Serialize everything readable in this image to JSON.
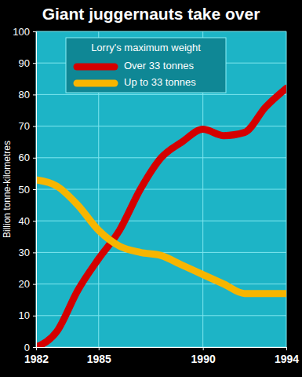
{
  "chart_data": {
    "type": "line",
    "title": "Giant juggernauts take over",
    "y_label": "Billion tonne-kilometres",
    "legend_title": "Lorry's maximum weight",
    "x": [
      1982,
      1983,
      1984,
      1985,
      1986,
      1987,
      1988,
      1989,
      1990,
      1991,
      1992,
      1993,
      1994
    ],
    "series": [
      {
        "name": "Over 33 tonnes",
        "color": "#d40000",
        "values": [
          0,
          5,
          18,
          28,
          37,
          50,
          60,
          65,
          69,
          67,
          68,
          76,
          82
        ]
      },
      {
        "name": "Up to 33 tonnes",
        "color": "#f7b500",
        "values": [
          53,
          51,
          45,
          37,
          32,
          30,
          29,
          26,
          23,
          20,
          17,
          17,
          17
        ]
      }
    ],
    "xlim": [
      1982,
      1994
    ],
    "xticks": [
      1982,
      1985,
      1990,
      1994
    ],
    "ylim": [
      0,
      100
    ],
    "yticks": [
      0,
      10,
      20,
      30,
      40,
      50,
      60,
      70,
      80,
      90,
      100
    ],
    "grid": true,
    "legend": "top-left"
  }
}
